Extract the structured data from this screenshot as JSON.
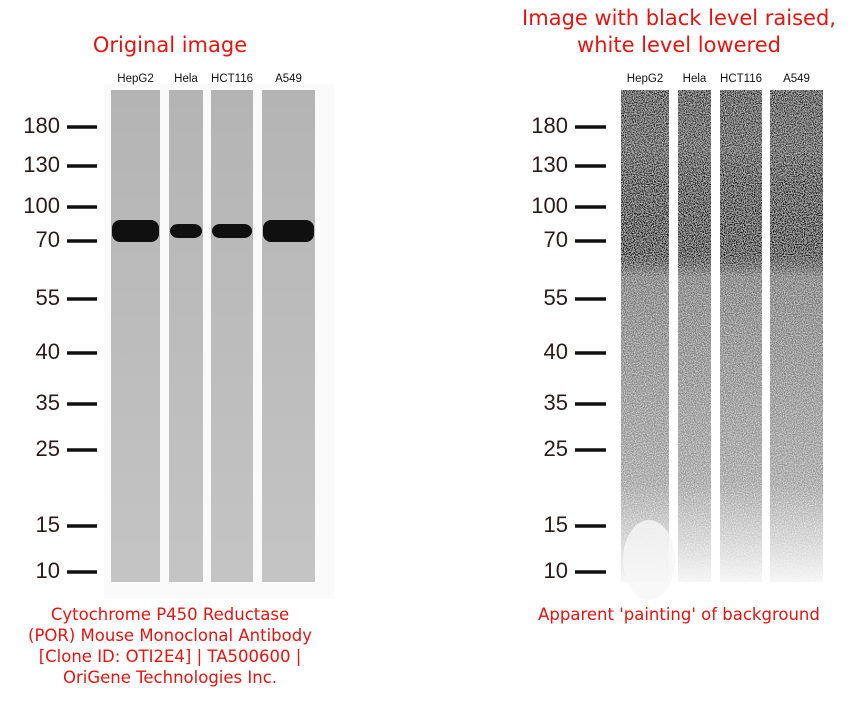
{
  "panels": [
    {
      "title": "Original image",
      "lanes": [
        "HepG2",
        "Hela",
        "HCT116",
        "A549"
      ],
      "markers": [
        "180",
        "130",
        "100",
        "70",
        "55",
        "40",
        "35",
        "25",
        "15",
        "10"
      ],
      "caption": "Cytochrome P450 Reductase (POR) Mouse Monoclonal Antibody [Clone ID: OTI2E4] | TA500600 | OriGene Technologies Inc."
    },
    {
      "title": "Image with black level raised, white level lowered",
      "lanes": [
        "HepG2",
        "Hela",
        "HCT116",
        "A549"
      ],
      "markers": [
        "180",
        "130",
        "100",
        "70",
        "55",
        "40",
        "35",
        "25",
        "15",
        "10"
      ],
      "caption": "Apparent 'painting' of background"
    }
  ]
}
